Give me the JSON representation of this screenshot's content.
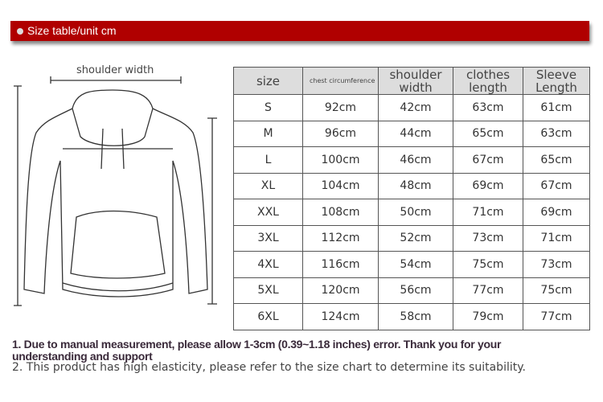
{
  "banner": {
    "title": "Size table/unit cm"
  },
  "diagram": {
    "shoulder_label": "shoulder width"
  },
  "table": {
    "headers": [
      "size",
      "chest circumference",
      "shoulder width",
      "clothes length",
      "Sleeve Length"
    ],
    "rows": [
      [
        "S",
        "92cm",
        "42cm",
        "63cm",
        "61cm"
      ],
      [
        "M",
        "96cm",
        "44cm",
        "65cm",
        "63cm"
      ],
      [
        "L",
        "100cm",
        "46cm",
        "67cm",
        "65cm"
      ],
      [
        "XL",
        "104cm",
        "48cm",
        "69cm",
        "67cm"
      ],
      [
        "XXL",
        "108cm",
        "50cm",
        "71cm",
        "69cm"
      ],
      [
        "3XL",
        "112cm",
        "52cm",
        "73cm",
        "71cm"
      ],
      [
        "4XL",
        "116cm",
        "54cm",
        "75cm",
        "73cm"
      ],
      [
        "5XL",
        "120cm",
        "56cm",
        "77cm",
        "75cm"
      ],
      [
        "6XL",
        "124cm",
        "58cm",
        "79cm",
        "77cm"
      ]
    ]
  },
  "notes": {
    "note1": "1. Due to manual measurement, please allow 1-3cm (0.39~1.18 inches) error. Thank you for your understanding and support",
    "note2": "2. This product has high elasticity, please refer to the size chart to determine its suitability."
  },
  "colors": {
    "banner": "#b00000",
    "header_bg": "#dddddd"
  }
}
